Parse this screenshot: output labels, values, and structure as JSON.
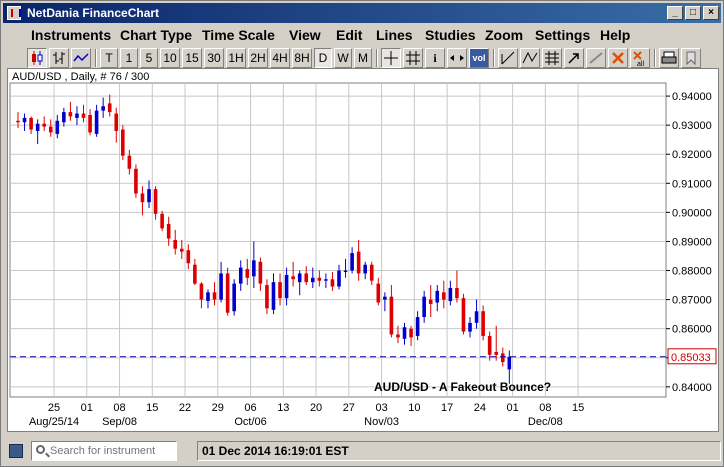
{
  "window": {
    "title": "NetDania FinanceChart"
  },
  "menu": [
    "Instruments",
    "Chart Type",
    "Time Scale",
    "View",
    "Edit",
    "Lines",
    "Studies",
    "Zoom",
    "Settings",
    "Help"
  ],
  "toolbar": {
    "text_buttons": [
      "T",
      "1",
      "5",
      "10",
      "15",
      "30",
      "1H",
      "2H",
      "4H",
      "8H",
      "D",
      "W",
      "M"
    ],
    "active": "D",
    "icons": [
      "candlestick-icon",
      "ohlc-bar-icon",
      "line-chart-icon",
      "crosshair-icon",
      "grid-icon",
      "info-icon",
      "pan-icon",
      "volume-icon",
      "trendline-icon",
      "channel-icon",
      "fibonacci-icon",
      "cursor-icon",
      "eraser-icon",
      "delete-icon",
      "delete-all-icon",
      "print-icon",
      "bookmark-icon"
    ],
    "info_label": "i",
    "vol_label": "vol",
    "all_label": "all"
  },
  "chart": {
    "header": "AUD/USD , Daily, # 76 / 300",
    "annotation": "AUD/USD - A Fakeout Bounce?",
    "current_price_label": "0.85033",
    "colors": {
      "up": "#0000cc",
      "down": "#dd0000",
      "grid": "#c8c8c8",
      "price_line": "#0000aa",
      "price_box": "#cc0000"
    }
  },
  "chart_data": {
    "type": "candlestick",
    "title": "AUD/USD , Daily, # 76 / 300",
    "ylim": [
      0.8365,
      0.9445
    ],
    "y_ticks": [
      "0.84000",
      "0.85000",
      "0.86000",
      "0.87000",
      "0.88000",
      "0.89000",
      "0.90000",
      "0.91000",
      "0.92000",
      "0.93000",
      "0.94000"
    ],
    "x_ticks": [
      "25",
      "01",
      "08",
      "15",
      "22",
      "29",
      "06",
      "13",
      "20",
      "27",
      "03",
      "10",
      "17",
      "24",
      "01",
      "08",
      "15"
    ],
    "x_month_labels": [
      "Aug/25/14",
      "Sep/08",
      "Oct/06",
      "Nov/03",
      "Dec/08"
    ],
    "current_price": 0.85033,
    "candles": [
      {
        "o": 0.9315,
        "h": 0.9345,
        "l": 0.929,
        "c": 0.931
      },
      {
        "o": 0.931,
        "h": 0.934,
        "l": 0.928,
        "c": 0.9325
      },
      {
        "o": 0.9325,
        "h": 0.933,
        "l": 0.927,
        "c": 0.9285
      },
      {
        "o": 0.928,
        "h": 0.932,
        "l": 0.9235,
        "c": 0.9305
      },
      {
        "o": 0.9305,
        "h": 0.933,
        "l": 0.928,
        "c": 0.9295
      },
      {
        "o": 0.9295,
        "h": 0.932,
        "l": 0.926,
        "c": 0.9275
      },
      {
        "o": 0.927,
        "h": 0.9335,
        "l": 0.9255,
        "c": 0.9315
      },
      {
        "o": 0.931,
        "h": 0.936,
        "l": 0.9295,
        "c": 0.9345
      },
      {
        "o": 0.9345,
        "h": 0.938,
        "l": 0.9315,
        "c": 0.933
      },
      {
        "o": 0.9325,
        "h": 0.9365,
        "l": 0.93,
        "c": 0.934
      },
      {
        "o": 0.934,
        "h": 0.937,
        "l": 0.931,
        "c": 0.9325
      },
      {
        "o": 0.9335,
        "h": 0.9355,
        "l": 0.9265,
        "c": 0.9275
      },
      {
        "o": 0.927,
        "h": 0.937,
        "l": 0.926,
        "c": 0.935
      },
      {
        "o": 0.935,
        "h": 0.9395,
        "l": 0.9325,
        "c": 0.9365
      },
      {
        "o": 0.9375,
        "h": 0.9405,
        "l": 0.933,
        "c": 0.9345
      },
      {
        "o": 0.934,
        "h": 0.936,
        "l": 0.924,
        "c": 0.928
      },
      {
        "o": 0.9285,
        "h": 0.93,
        "l": 0.918,
        "c": 0.9195
      },
      {
        "o": 0.9195,
        "h": 0.9215,
        "l": 0.913,
        "c": 0.915
      },
      {
        "o": 0.915,
        "h": 0.9165,
        "l": 0.905,
        "c": 0.9065
      },
      {
        "o": 0.9065,
        "h": 0.909,
        "l": 0.899,
        "c": 0.9035
      },
      {
        "o": 0.9035,
        "h": 0.911,
        "l": 0.9015,
        "c": 0.908
      },
      {
        "o": 0.908,
        "h": 0.909,
        "l": 0.8975,
        "c": 0.8995
      },
      {
        "o": 0.8995,
        "h": 0.9005,
        "l": 0.8935,
        "c": 0.8945
      },
      {
        "o": 0.896,
        "h": 0.8985,
        "l": 0.8885,
        "c": 0.891
      },
      {
        "o": 0.8905,
        "h": 0.894,
        "l": 0.8855,
        "c": 0.8875
      },
      {
        "o": 0.8875,
        "h": 0.8905,
        "l": 0.884,
        "c": 0.8865
      },
      {
        "o": 0.887,
        "h": 0.889,
        "l": 0.8805,
        "c": 0.8825
      },
      {
        "o": 0.882,
        "h": 0.884,
        "l": 0.875,
        "c": 0.8755
      },
      {
        "o": 0.8755,
        "h": 0.876,
        "l": 0.867,
        "c": 0.87
      },
      {
        "o": 0.8695,
        "h": 0.8735,
        "l": 0.867,
        "c": 0.8725
      },
      {
        "o": 0.8725,
        "h": 0.876,
        "l": 0.868,
        "c": 0.87
      },
      {
        "o": 0.87,
        "h": 0.883,
        "l": 0.869,
        "c": 0.879
      },
      {
        "o": 0.879,
        "h": 0.881,
        "l": 0.8645,
        "c": 0.8655
      },
      {
        "o": 0.866,
        "h": 0.877,
        "l": 0.8645,
        "c": 0.8755
      },
      {
        "o": 0.8755,
        "h": 0.8835,
        "l": 0.873,
        "c": 0.881
      },
      {
        "o": 0.8805,
        "h": 0.884,
        "l": 0.875,
        "c": 0.8775
      },
      {
        "o": 0.878,
        "h": 0.89,
        "l": 0.874,
        "c": 0.8835
      },
      {
        "o": 0.883,
        "h": 0.8845,
        "l": 0.873,
        "c": 0.8755
      },
      {
        "o": 0.875,
        "h": 0.877,
        "l": 0.865,
        "c": 0.867
      },
      {
        "o": 0.8665,
        "h": 0.879,
        "l": 0.865,
        "c": 0.876
      },
      {
        "o": 0.876,
        "h": 0.879,
        "l": 0.868,
        "c": 0.8705
      },
      {
        "o": 0.8705,
        "h": 0.881,
        "l": 0.868,
        "c": 0.8785
      },
      {
        "o": 0.878,
        "h": 0.883,
        "l": 0.8745,
        "c": 0.877
      },
      {
        "o": 0.876,
        "h": 0.88,
        "l": 0.8715,
        "c": 0.879
      },
      {
        "o": 0.879,
        "h": 0.8815,
        "l": 0.875,
        "c": 0.876
      },
      {
        "o": 0.876,
        "h": 0.881,
        "l": 0.874,
        "c": 0.8775
      },
      {
        "o": 0.8775,
        "h": 0.88,
        "l": 0.8745,
        "c": 0.8765
      },
      {
        "o": 0.8765,
        "h": 0.879,
        "l": 0.874,
        "c": 0.877
      },
      {
        "o": 0.877,
        "h": 0.8795,
        "l": 0.873,
        "c": 0.8745
      },
      {
        "o": 0.8745,
        "h": 0.882,
        "l": 0.8735,
        "c": 0.88
      },
      {
        "o": 0.8795,
        "h": 0.884,
        "l": 0.8775,
        "c": 0.88
      },
      {
        "o": 0.88,
        "h": 0.888,
        "l": 0.879,
        "c": 0.886
      },
      {
        "o": 0.8865,
        "h": 0.8905,
        "l": 0.8765,
        "c": 0.879
      },
      {
        "o": 0.879,
        "h": 0.883,
        "l": 0.877,
        "c": 0.882
      },
      {
        "o": 0.882,
        "h": 0.883,
        "l": 0.875,
        "c": 0.8765
      },
      {
        "o": 0.8755,
        "h": 0.8775,
        "l": 0.868,
        "c": 0.869
      },
      {
        "o": 0.87,
        "h": 0.8725,
        "l": 0.866,
        "c": 0.871
      },
      {
        "o": 0.871,
        "h": 0.875,
        "l": 0.857,
        "c": 0.858
      },
      {
        "o": 0.858,
        "h": 0.861,
        "l": 0.855,
        "c": 0.857
      },
      {
        "o": 0.8565,
        "h": 0.862,
        "l": 0.8545,
        "c": 0.8605
      },
      {
        "o": 0.86,
        "h": 0.861,
        "l": 0.854,
        "c": 0.857
      },
      {
        "o": 0.8575,
        "h": 0.866,
        "l": 0.856,
        "c": 0.864
      },
      {
        "o": 0.864,
        "h": 0.873,
        "l": 0.862,
        "c": 0.871
      },
      {
        "o": 0.87,
        "h": 0.875,
        "l": 0.864,
        "c": 0.8685
      },
      {
        "o": 0.869,
        "h": 0.875,
        "l": 0.866,
        "c": 0.873
      },
      {
        "o": 0.8725,
        "h": 0.8765,
        "l": 0.867,
        "c": 0.87
      },
      {
        "o": 0.8695,
        "h": 0.8765,
        "l": 0.868,
        "c": 0.874
      },
      {
        "o": 0.874,
        "h": 0.88,
        "l": 0.869,
        "c": 0.8705
      },
      {
        "o": 0.8705,
        "h": 0.872,
        "l": 0.858,
        "c": 0.859
      },
      {
        "o": 0.859,
        "h": 0.864,
        "l": 0.857,
        "c": 0.862
      },
      {
        "o": 0.862,
        "h": 0.87,
        "l": 0.86,
        "c": 0.866
      },
      {
        "o": 0.866,
        "h": 0.868,
        "l": 0.856,
        "c": 0.8575
      },
      {
        "o": 0.8575,
        "h": 0.859,
        "l": 0.849,
        "c": 0.851
      },
      {
        "o": 0.852,
        "h": 0.861,
        "l": 0.849,
        "c": 0.851
      },
      {
        "o": 0.8515,
        "h": 0.8535,
        "l": 0.847,
        "c": 0.8485
      },
      {
        "o": 0.846,
        "h": 0.8525,
        "l": 0.841,
        "c": 0.8503
      }
    ]
  },
  "status": {
    "search_placeholder": "Search for instrument",
    "datetime": "01 Dec 2014 16:19:01 EST"
  }
}
